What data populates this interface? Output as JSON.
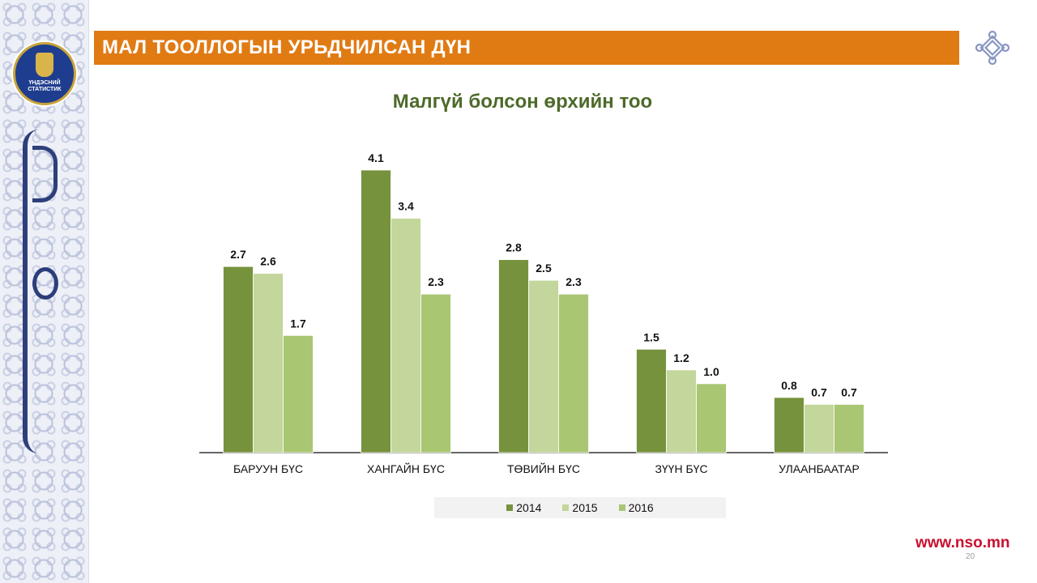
{
  "header": {
    "title": "МАЛ ТООЛЛОГЫН УРЬДЧИЛСАН ДҮН"
  },
  "logo": {
    "text_line1": "ҮНДЭСНИЙ",
    "text_line2": "СТАТИСТИК"
  },
  "colors": {
    "header_bg": "#e07b14",
    "series_2014": "#76923c",
    "series_2015": "#c3d69b",
    "series_2016": "#a9c672",
    "chart_title": "#4d6a2a",
    "url": "#c8102e"
  },
  "chart_data": {
    "type": "bar",
    "title": "Малгүй болсон өрхийн тоо",
    "xlabel": "",
    "ylabel": "",
    "categories": [
      "БАРУУН БҮС",
      "ХАНГАЙН БҮС",
      "ТӨВИЙН БҮС",
      "ЗҮҮН БҮС",
      "УЛААНБААТАР"
    ],
    "series": [
      {
        "name": "2014",
        "values": [
          2.7,
          4.1,
          2.8,
          1.5,
          0.8
        ]
      },
      {
        "name": "2015",
        "values": [
          2.6,
          3.4,
          2.5,
          1.2,
          0.7
        ]
      },
      {
        "name": "2016",
        "values": [
          1.7,
          2.3,
          2.3,
          1.0,
          0.7
        ]
      }
    ],
    "ylim": [
      0,
      4.1
    ],
    "grid": false,
    "legend_position": "bottom",
    "data_labels": true
  },
  "footer": {
    "url": "www.nso.mn",
    "page_number": "20"
  },
  "icons": {
    "side_pattern": "ornament-pattern",
    "knot": "endless-knot-icon",
    "emblem": "nso-logo-icon"
  }
}
